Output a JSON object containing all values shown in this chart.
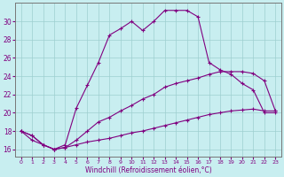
{
  "xlabel": "Windchill (Refroidissement éolien,°C)",
  "background_color": "#c8eef0",
  "line_color": "#800080",
  "grid_color": "#9ecfcf",
  "x_ticks": [
    0,
    1,
    2,
    3,
    4,
    5,
    6,
    7,
    8,
    9,
    10,
    11,
    12,
    13,
    14,
    15,
    16,
    17,
    18,
    19,
    20,
    21,
    22,
    23
  ],
  "y_ticks": [
    16,
    18,
    20,
    22,
    24,
    26,
    28,
    30
  ],
  "ylim": [
    15.2,
    32.0
  ],
  "xlim": [
    -0.5,
    23.5
  ],
  "series1_x": [
    0,
    1,
    2,
    3,
    4,
    5,
    6,
    7,
    8,
    9,
    10,
    11,
    12,
    13,
    14,
    15,
    16,
    17,
    18,
    19,
    20,
    21,
    22,
    23
  ],
  "series1_y": [
    18.0,
    17.5,
    16.5,
    16.0,
    16.2,
    16.5,
    16.8,
    17.0,
    17.2,
    17.5,
    17.8,
    18.0,
    18.3,
    18.6,
    18.9,
    19.2,
    19.5,
    19.8,
    20.0,
    20.2,
    20.3,
    20.4,
    20.2,
    20.2
  ],
  "series2_x": [
    0,
    1,
    2,
    3,
    4,
    5,
    6,
    7,
    8,
    9,
    10,
    11,
    12,
    13,
    14,
    15,
    16,
    17,
    18,
    19,
    20,
    21,
    22,
    23
  ],
  "series2_y": [
    18.0,
    17.5,
    16.5,
    16.0,
    16.5,
    20.5,
    23.0,
    25.5,
    28.5,
    29.2,
    30.0,
    29.0,
    30.0,
    31.2,
    31.2,
    31.2,
    30.5,
    25.5,
    24.7,
    24.2,
    23.2,
    22.5,
    20.0,
    20.0
  ],
  "series3_x": [
    0,
    1,
    2,
    3,
    4,
    5,
    6,
    7,
    8,
    9,
    10,
    11,
    12,
    13,
    14,
    15,
    16,
    17,
    18,
    19,
    20,
    21,
    22,
    23
  ],
  "series3_y": [
    18.0,
    17.0,
    16.5,
    16.0,
    16.2,
    17.0,
    18.0,
    19.0,
    19.5,
    20.2,
    20.8,
    21.5,
    22.0,
    22.8,
    23.2,
    23.5,
    23.8,
    24.2,
    24.5,
    24.5,
    24.5,
    24.3,
    23.5,
    20.2
  ]
}
